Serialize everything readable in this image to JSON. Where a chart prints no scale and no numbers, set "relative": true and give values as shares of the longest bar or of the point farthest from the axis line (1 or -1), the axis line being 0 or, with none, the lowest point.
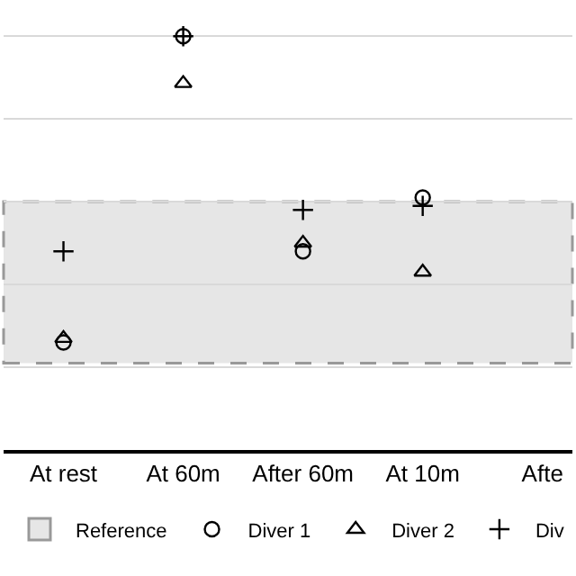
{
  "chart_data": {
    "type": "scatter",
    "relative": true,
    "categories": [
      "At rest",
      "At 60m",
      "After 60m",
      "At 10m",
      "Afte"
    ],
    "series": [
      {
        "name": "Diver 1",
        "color": "#000000",
        "marker": "circle",
        "values": [
          0.26,
          1.0,
          0.48,
          0.61,
          null
        ]
      },
      {
        "name": "Diver 2",
        "color": "#000000",
        "marker": "triangle",
        "values": [
          0.27,
          0.886,
          0.5,
          0.43,
          null
        ]
      },
      {
        "name": "Div",
        "color": "#000000",
        "marker": "cross",
        "values": [
          0.48,
          1.0,
          0.58,
          0.59,
          null
        ]
      }
    ],
    "bands": [
      {
        "axis": "y",
        "from": 0.21,
        "to": 0.6,
        "label": "Reference",
        "color": "#e6e6e6"
      }
    ],
    "grid": "y",
    "legend": "bottom"
  }
}
